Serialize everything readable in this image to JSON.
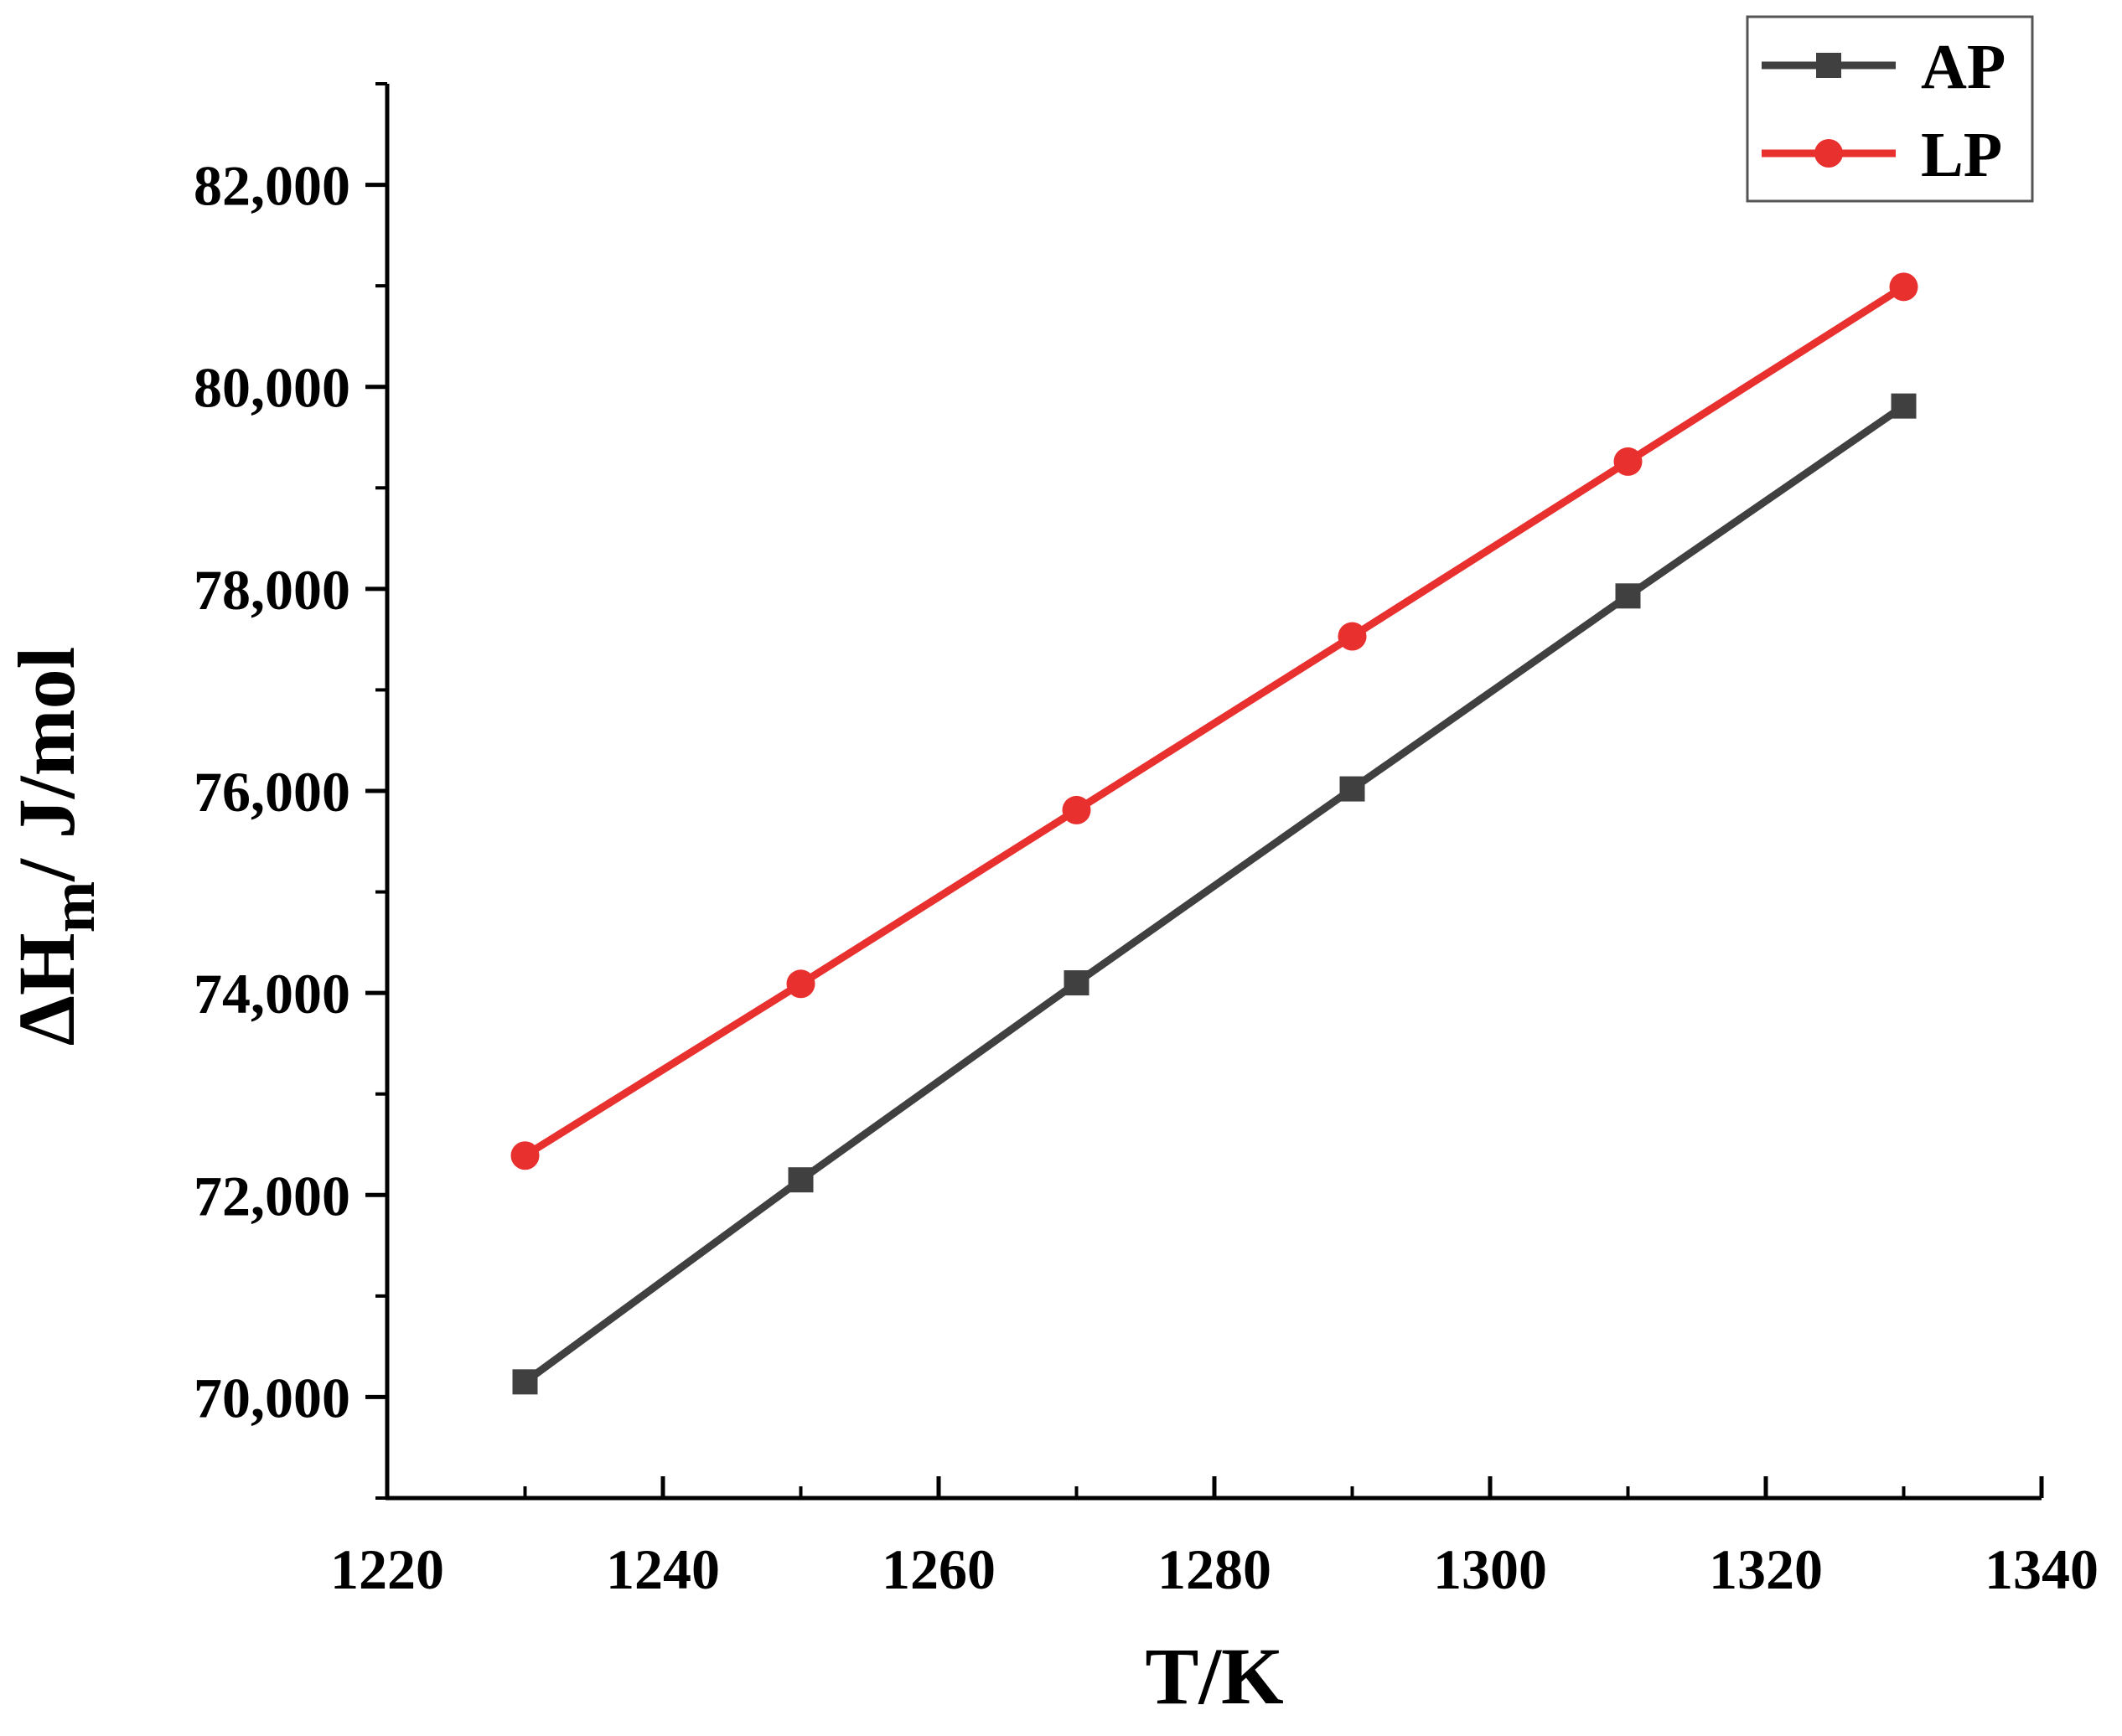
{
  "chart_data": {
    "type": "line",
    "title": "",
    "xlabel": "T/K",
    "ylabel_delta": "ΔH",
    "ylabel_subscript": "m",
    "ylabel_rest": "/ J/mol",
    "xlim": [
      1220,
      1340
    ],
    "ylim": [
      69000,
      83000
    ],
    "x_ticks": [
      1220,
      1240,
      1260,
      1280,
      1300,
      1320,
      1340
    ],
    "x_tick_labels": [
      "1220",
      "1240",
      "1260",
      "1280",
      "1300",
      "1320",
      "1340"
    ],
    "y_ticks": [
      70000,
      72000,
      74000,
      76000,
      78000,
      80000,
      82000
    ],
    "y_tick_labels": [
      "70,000",
      "72,000",
      "74,000",
      "76,000",
      "78,000",
      "80,000",
      "82,000"
    ],
    "legend_position": "top-right",
    "grid": false,
    "series": [
      {
        "name": "AP",
        "marker": "square",
        "color": "#404040",
        "x": [
          1230,
          1250,
          1270,
          1290,
          1310,
          1330
        ],
        "y": [
          70150,
          72150,
          74100,
          76020,
          77930,
          79810
        ]
      },
      {
        "name": "LP",
        "marker": "circle",
        "color": "#e8302f",
        "x": [
          1230,
          1250,
          1270,
          1290,
          1310,
          1330
        ],
        "y": [
          72390,
          74090,
          75810,
          77530,
          79260,
          80990
        ]
      }
    ]
  }
}
